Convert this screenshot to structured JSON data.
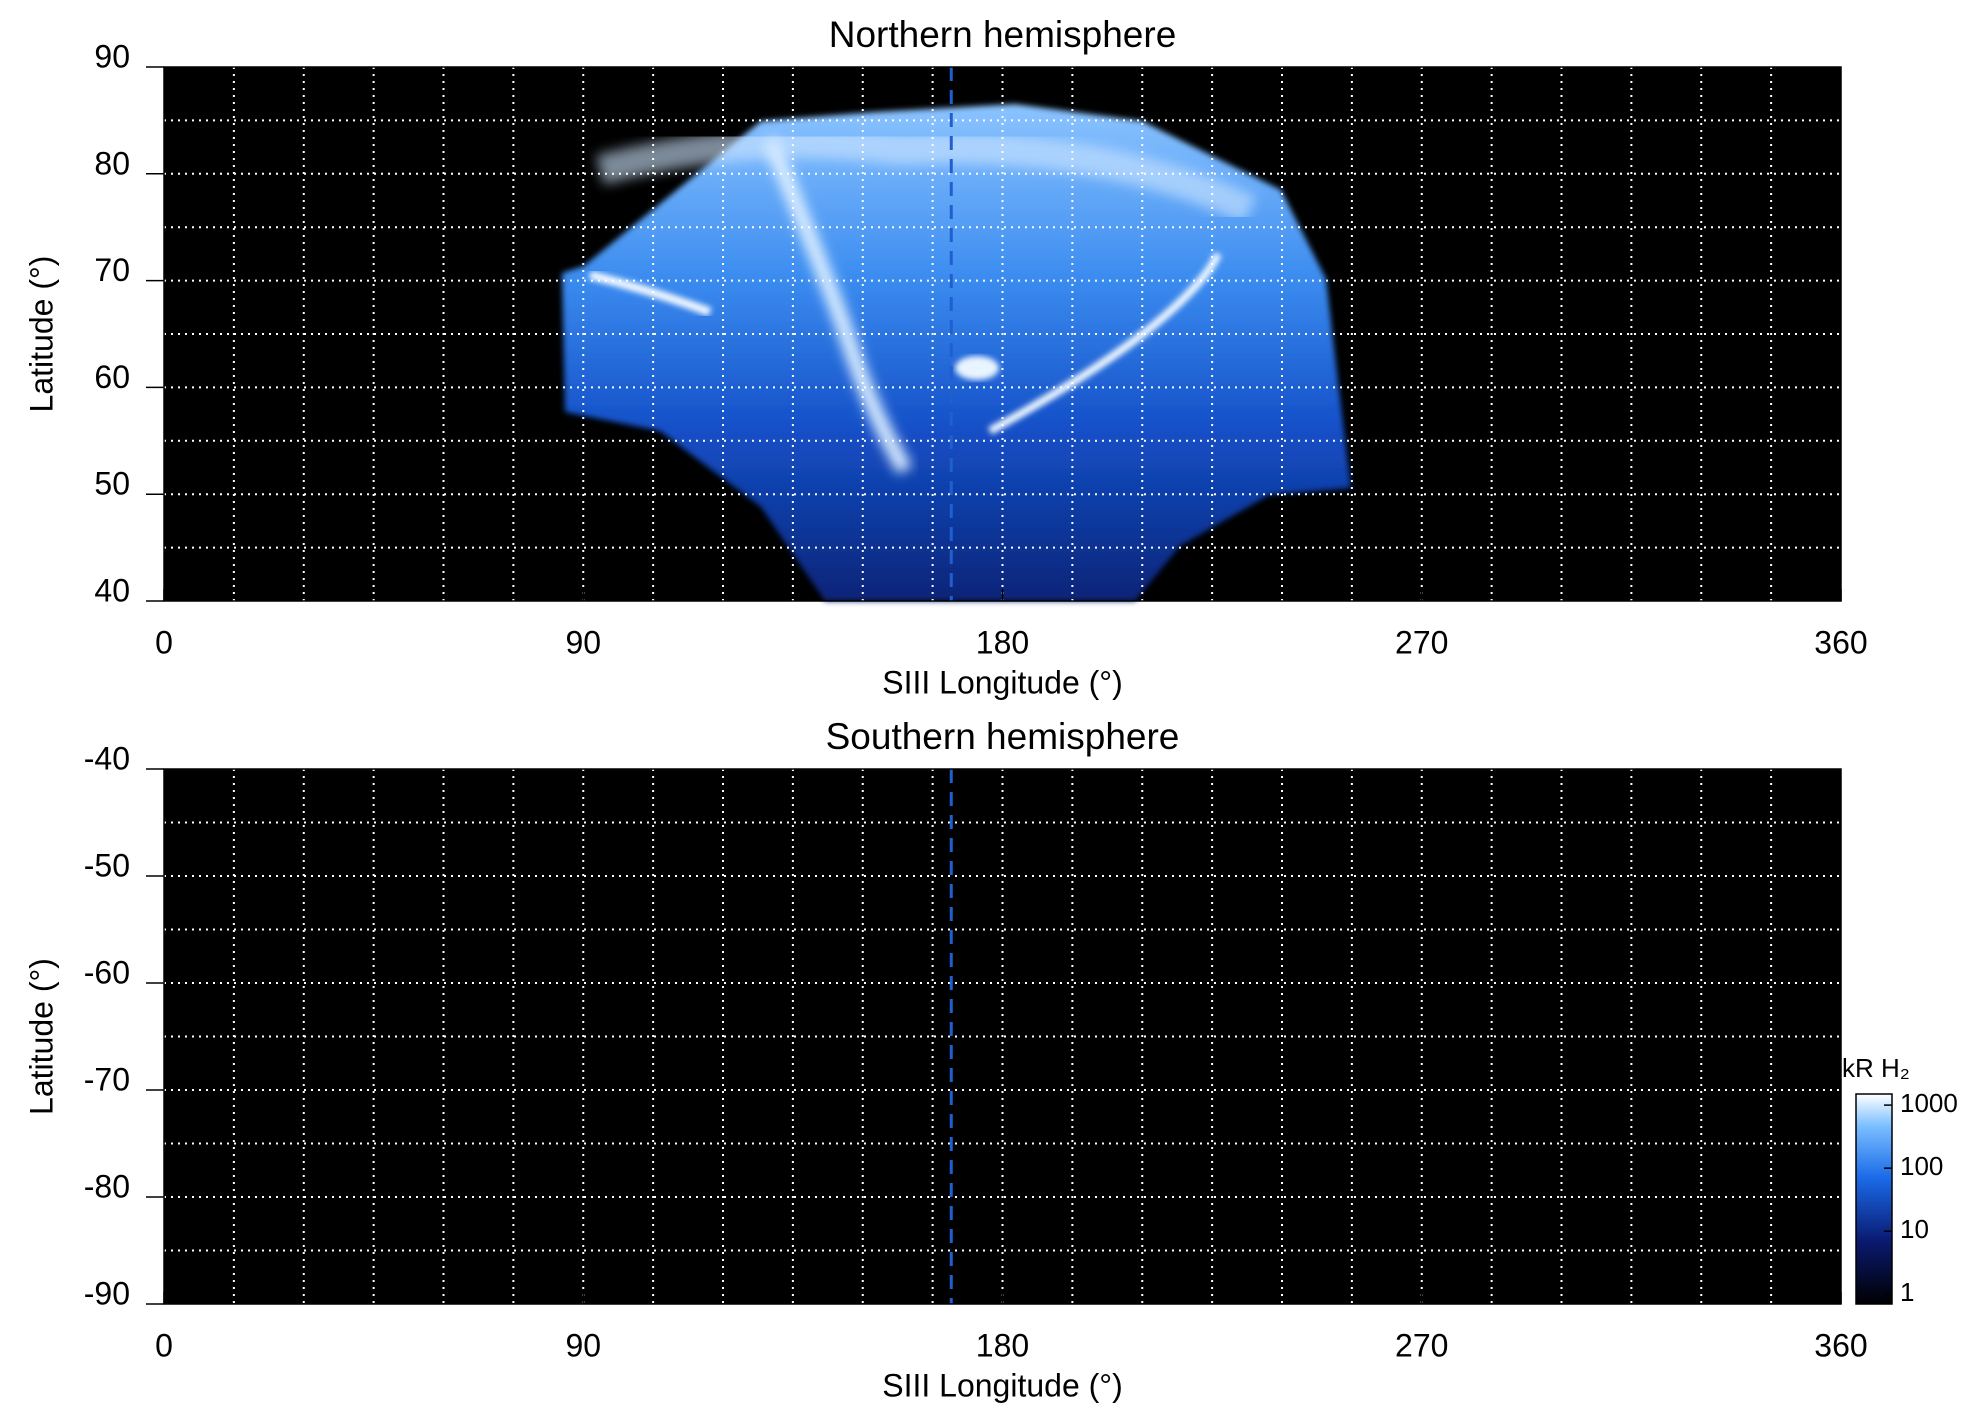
{
  "chart_data": [
    {
      "type": "image",
      "title": "Northern hemisphere",
      "x_label": "SIII Longitude (°)",
      "y_label": "Latitude (°)",
      "xlim": [
        0,
        360
      ],
      "ylim": [
        40,
        90
      ],
      "xticks": [
        0,
        90,
        180,
        270,
        360
      ],
      "yticks": [
        40,
        50,
        60,
        70,
        80,
        90
      ],
      "xgrid": [
        15,
        30,
        45,
        60,
        75,
        90,
        105,
        120,
        135,
        150,
        165,
        180,
        195,
        210,
        225,
        240,
        255,
        270,
        285,
        300,
        315,
        330,
        345
      ],
      "ygrid": [
        45,
        50,
        55,
        60,
        65,
        70,
        75,
        80,
        85
      ],
      "reference_x": 169,
      "reference_color": "#1f5fd0"
    },
    {
      "type": "image",
      "title": "Southern hemisphere",
      "x_label": "SIII Longitude (°)",
      "y_label": "Latitude (°)",
      "xlim": [
        0,
        360
      ],
      "ylim": [
        -90,
        -40
      ],
      "xticks": [
        0,
        90,
        180,
        270,
        360
      ],
      "yticks": [
        -90,
        -80,
        -70,
        -60,
        -50,
        -40
      ],
      "xgrid": [
        15,
        30,
        45,
        60,
        75,
        90,
        105,
        120,
        135,
        150,
        165,
        180,
        195,
        210,
        225,
        240,
        255,
        270,
        285,
        300,
        315,
        330,
        345
      ],
      "ygrid": [
        -85,
        -80,
        -75,
        -70,
        -65,
        -60,
        -55,
        -50,
        -45
      ],
      "reference_x": 169,
      "reference_color": "#1f5fd0",
      "colorbar": {
        "label": "kR H₂",
        "scale": "log",
        "lim": [
          0.7,
          1500
        ],
        "ticks": [
          1,
          10,
          100,
          1000
        ]
      }
    }
  ]
}
